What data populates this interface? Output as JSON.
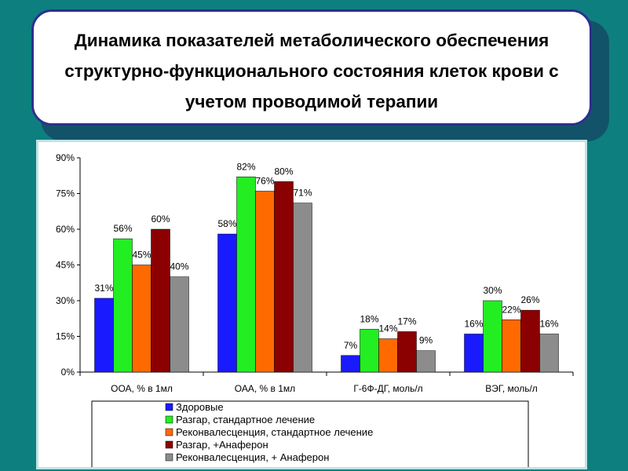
{
  "title": "Динамика показателей метаболического обеспечения структурно-функционального состояния клеток крови с учетом проводимой терапии",
  "chart_data": {
    "type": "bar",
    "title": "",
    "xlabel": "",
    "ylabel": "",
    "ylim": [
      0,
      90
    ],
    "yticks": [
      "0%",
      "15%",
      "30%",
      "45%",
      "60%",
      "75%",
      "90%"
    ],
    "grid": false,
    "legend_position": "bottom",
    "categories": [
      "ООА, % в 1мл",
      "ОАА, % в 1мл",
      "Г-6Ф-ДГ, моль/л",
      "ВЭГ, моль/л"
    ],
    "series": [
      {
        "name": "Здоровые",
        "color": "#1a1aff",
        "values": [
          31,
          58,
          7,
          16
        ],
        "labels": [
          "31%",
          "58%",
          "7%",
          "16%"
        ]
      },
      {
        "name": "Разгар, стандартное лечение",
        "color": "#22ee22",
        "values": [
          56,
          82,
          18,
          30
        ],
        "labels": [
          "56%",
          "82%",
          "18%",
          "30%"
        ]
      },
      {
        "name": "Реконвалесценция, стандартное лечение",
        "color": "#ff6a00",
        "values": [
          45,
          76,
          14,
          22
        ],
        "labels": [
          "45%",
          "76%",
          "14%",
          "22%"
        ]
      },
      {
        "name": "Разгар, +Анаферон",
        "color": "#8b0000",
        "values": [
          60,
          80,
          17,
          26
        ],
        "labels": [
          "60%",
          "80%",
          "17%",
          "26%"
        ]
      },
      {
        "name": "Реконвалесценция, + Анаферон",
        "color": "#8c8c8c",
        "values": [
          40,
          71,
          9,
          16
        ],
        "labels": [
          "40%",
          "71%",
          "9%",
          "16%"
        ]
      }
    ]
  }
}
